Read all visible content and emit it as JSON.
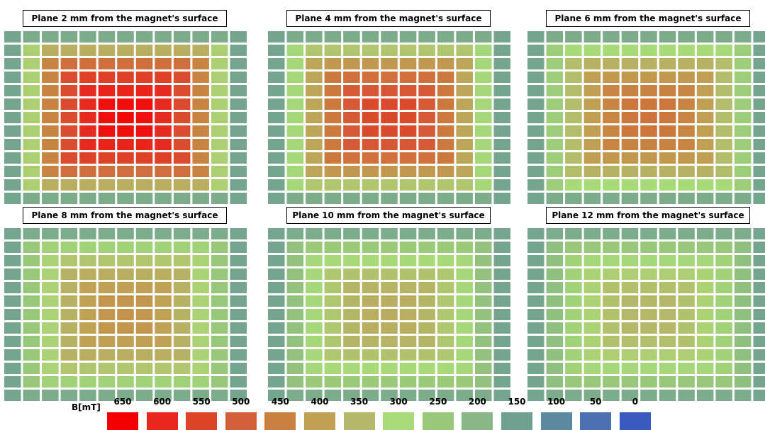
{
  "chart_data": {
    "type": "heatmap",
    "unit_label": "B[mT]",
    "colorbar": {
      "values": [
        650,
        600,
        550,
        500,
        450,
        400,
        350,
        300,
        250,
        200,
        150,
        100,
        50,
        0
      ],
      "colors": [
        "#f40000",
        "#e8281e",
        "#dc4428",
        "#d4603a",
        "#c98040",
        "#c0a055",
        "#b4b868",
        "#a8dc78",
        "#98c878",
        "#88b888",
        "#70a090",
        "#5c8aa0",
        "#4c70b0",
        "#3a5cc0"
      ]
    },
    "grid": {
      "rows": 13,
      "cols": 13
    },
    "panels": [
      {
        "title": "Plane 2 mm from the magnet's surface",
        "peak_mT": 640
      },
      {
        "title": "Plane 4 mm from the magnet's surface",
        "peak_mT": 545
      },
      {
        "title": "Plane 6 mm from the magnet's surface",
        "peak_mT": 470
      },
      {
        "title": "Plane 8 mm from the magnet's surface",
        "peak_mT": 420
      },
      {
        "title": "Plane 10 mm from the magnet's surface",
        "peak_mT": 375
      },
      {
        "title": "Plane 12 mm from the magnet's surface",
        "peak_mT": 355
      }
    ]
  }
}
